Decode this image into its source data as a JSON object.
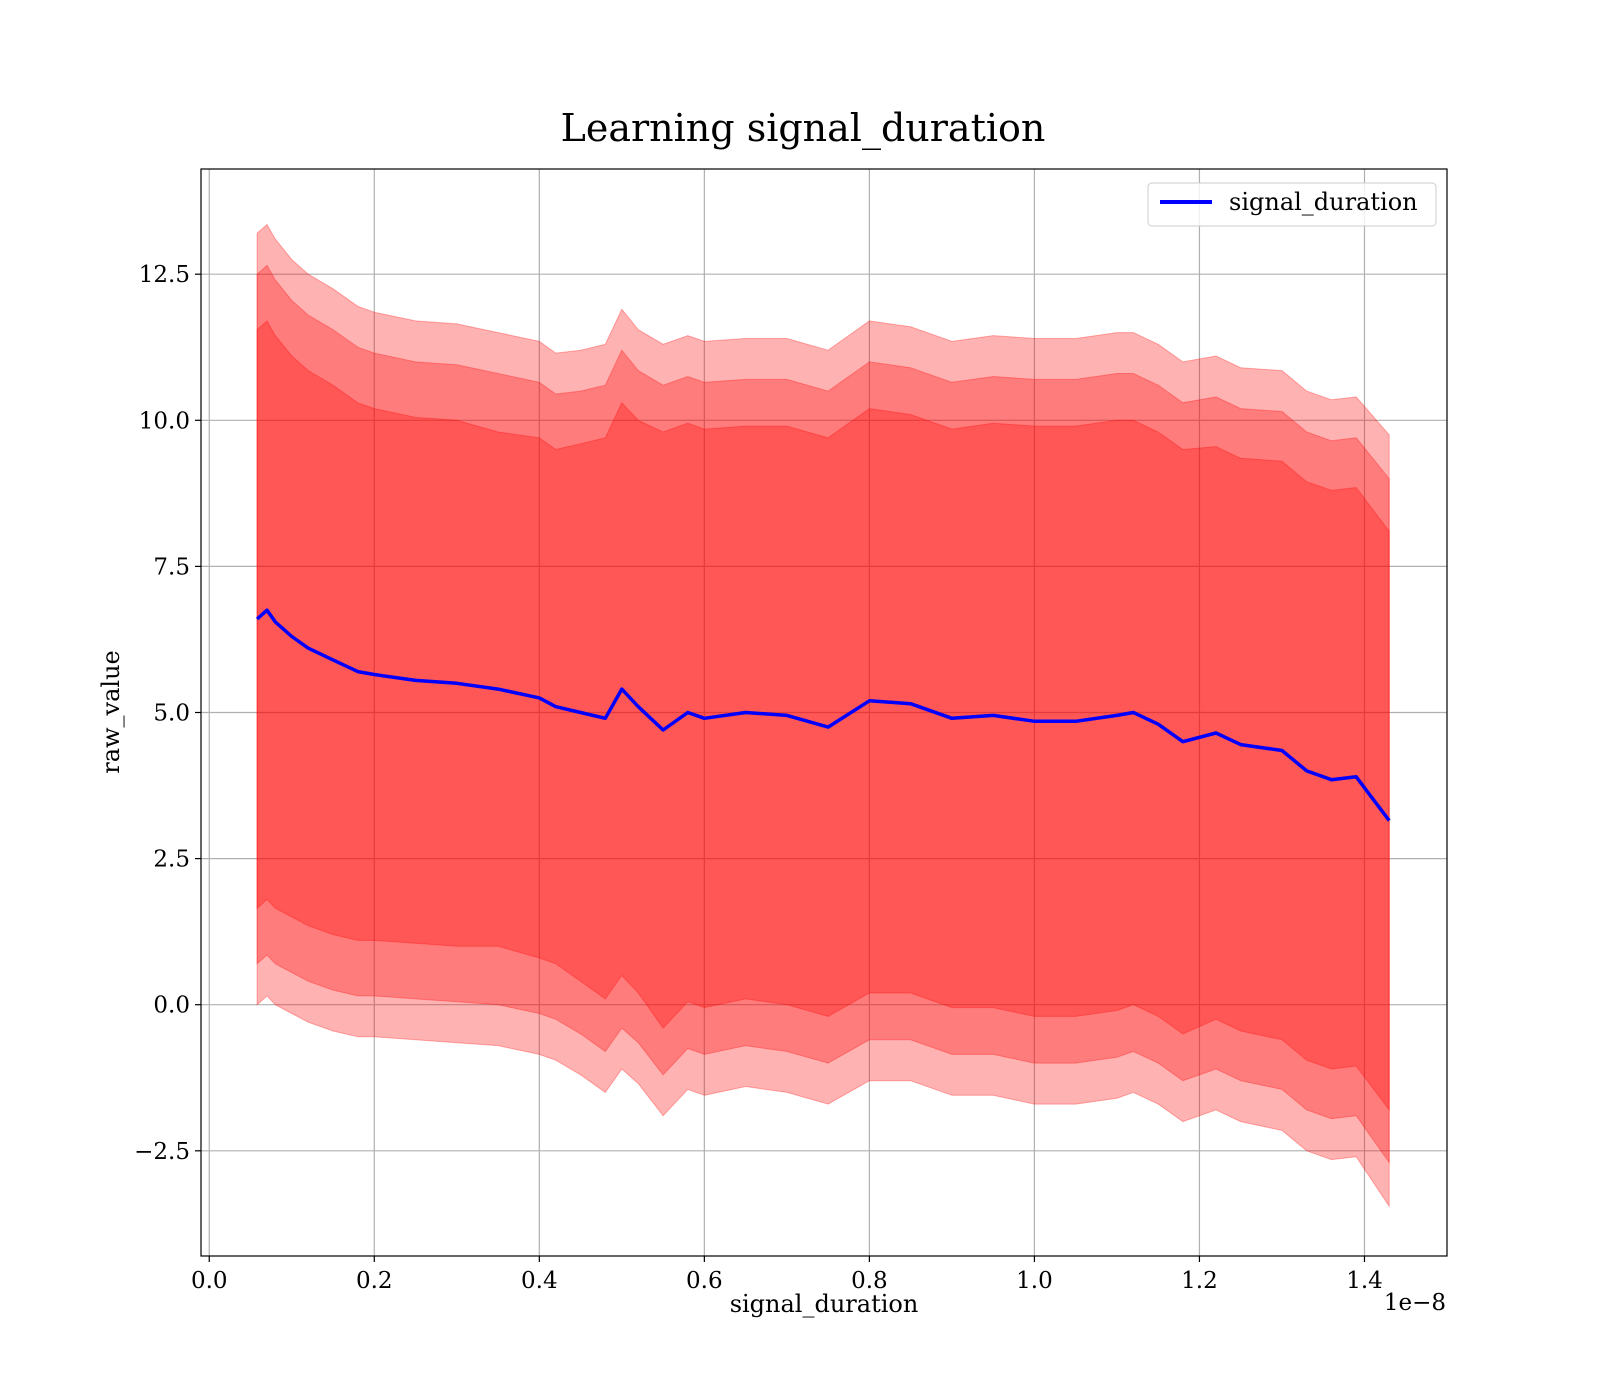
{
  "chart_data": {
    "type": "area",
    "title": "Learning signal_duration",
    "xlabel": "signal_duration",
    "ylabel": "raw_value",
    "x_offset_label": "1e−8",
    "xlim": [
      -0.01,
      1.5
    ],
    "ylim": [
      -4.3,
      14.3
    ],
    "x_ticks": [
      0.0,
      0.2,
      0.4,
      0.6,
      0.8,
      1.0,
      1.2,
      1.4
    ],
    "x_tick_labels": [
      "0.0",
      "0.2",
      "0.4",
      "0.6",
      "0.8",
      "1.0",
      "1.2",
      "1.4"
    ],
    "y_ticks": [
      -2.5,
      0.0,
      2.5,
      5.0,
      7.5,
      10.0,
      12.5
    ],
    "y_tick_labels": [
      "−2.5",
      "0.0",
      "2.5",
      "5.0",
      "7.5",
      "10.0",
      "12.5"
    ],
    "grid": true,
    "legend": {
      "placement": "top-right",
      "entries": [
        "signal_duration"
      ]
    },
    "colors": {
      "line": "#0000ff",
      "band": "#ff0000",
      "band_edge": "#ff0000"
    },
    "x": [
      0.058,
      0.07,
      0.08,
      0.1,
      0.12,
      0.15,
      0.18,
      0.2,
      0.25,
      0.3,
      0.35,
      0.4,
      0.42,
      0.45,
      0.48,
      0.5,
      0.52,
      0.55,
      0.58,
      0.6,
      0.65,
      0.7,
      0.75,
      0.8,
      0.85,
      0.9,
      0.95,
      1.0,
      1.05,
      1.1,
      1.12,
      1.15,
      1.18,
      1.22,
      1.25,
      1.3,
      1.33,
      1.36,
      1.39,
      1.43
    ],
    "series": [
      {
        "name": "signal_duration",
        "values": [
          6.6,
          6.75,
          6.55,
          6.3,
          6.1,
          5.9,
          5.7,
          5.65,
          5.55,
          5.5,
          5.4,
          5.25,
          5.1,
          5.0,
          4.9,
          5.4,
          5.1,
          4.7,
          5.0,
          4.9,
          5.0,
          4.95,
          4.75,
          5.2,
          5.15,
          4.9,
          4.95,
          4.85,
          4.85,
          4.95,
          5.0,
          4.8,
          4.5,
          4.65,
          4.45,
          4.35,
          4.0,
          3.85,
          3.9,
          3.15
        ]
      }
    ],
    "bands": [
      {
        "k_std": 1,
        "std": [
          4.95,
          4.95,
          4.9,
          4.8,
          4.75,
          4.7,
          4.6,
          4.55,
          4.5,
          4.5,
          4.4,
          4.45,
          4.4,
          4.6,
          4.8,
          4.9,
          4.9,
          5.1,
          4.95,
          4.95,
          4.9,
          4.95,
          4.95,
          5.0,
          4.95,
          4.95,
          5.0,
          5.05,
          5.05,
          5.05,
          5.0,
          5.0,
          5.0,
          4.9,
          4.9,
          4.95,
          4.95,
          4.95,
          4.95,
          4.95
        ]
      },
      {
        "k_std": 2,
        "std": [
          5.9,
          5.9,
          5.85,
          5.75,
          5.7,
          5.65,
          5.55,
          5.5,
          5.45,
          5.45,
          5.4,
          5.4,
          5.35,
          5.5,
          5.7,
          5.8,
          5.75,
          5.9,
          5.75,
          5.75,
          5.7,
          5.75,
          5.75,
          5.8,
          5.75,
          5.75,
          5.8,
          5.85,
          5.85,
          5.85,
          5.8,
          5.8,
          5.8,
          5.75,
          5.75,
          5.8,
          5.8,
          5.8,
          5.8,
          5.85
        ]
      },
      {
        "k_std": 3,
        "std": [
          6.6,
          6.6,
          6.55,
          6.45,
          6.4,
          6.35,
          6.25,
          6.2,
          6.15,
          6.15,
          6.1,
          6.1,
          6.05,
          6.2,
          6.4,
          6.5,
          6.45,
          6.6,
          6.45,
          6.45,
          6.4,
          6.45,
          6.45,
          6.5,
          6.45,
          6.45,
          6.5,
          6.55,
          6.55,
          6.55,
          6.5,
          6.5,
          6.5,
          6.45,
          6.45,
          6.5,
          6.5,
          6.5,
          6.5,
          6.6
        ]
      }
    ]
  }
}
